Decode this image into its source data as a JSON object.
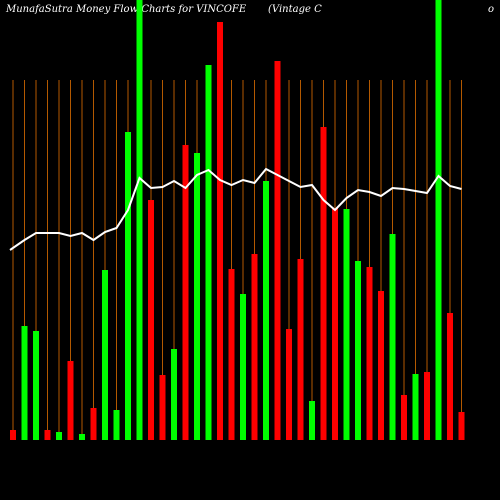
{
  "chart_data": {
    "type": "bar-line",
    "title": "MunafaSutra  Money Flow  Charts for VINCOFE",
    "subtitle": "(Vintage   C",
    "corner_text": "o",
    "categories": [
      null,
      null,
      null,
      null,
      null,
      null,
      null,
      null,
      null,
      null,
      null,
      null,
      null,
      null,
      null,
      null,
      null,
      null,
      null,
      null,
      null,
      null,
      null,
      null,
      null,
      null,
      null,
      null,
      null,
      null,
      null,
      null,
      null,
      null,
      null,
      null,
      null,
      null,
      null,
      null
    ],
    "ylim": [
      0,
      440
    ],
    "series": [
      {
        "type": "bar",
        "values": [
          10,
          114,
          109,
          10,
          8,
          79,
          6,
          32,
          170,
          30,
          308,
          440,
          240,
          65,
          91,
          295,
          287,
          375,
          418,
          171,
          146,
          186,
          259,
          379,
          111,
          181,
          39,
          313,
          232,
          231,
          179,
          173,
          149,
          206,
          45,
          66,
          68,
          440,
          127,
          28
        ],
        "colors": [
          "#ff0000",
          "#00ff00",
          "#00ff00",
          "#ff0000",
          "#00ff00",
          "#ff0000",
          "#00ff00",
          "#ff0000",
          "#00ff00",
          "#00ff00",
          "#00ff00",
          "#00ff00",
          "#ff0000",
          "#ff0000",
          "#00ff00",
          "#ff0000",
          "#00ff00",
          "#00ff00",
          "#ff0000",
          "#ff0000",
          "#00ff00",
          "#ff0000",
          "#00ff00",
          "#ff0000",
          "#ff0000",
          "#ff0000",
          "#00ff00",
          "#ff0000",
          "#ff0000",
          "#00ff00",
          "#00ff00",
          "#ff0000",
          "#ff0000",
          "#00ff00",
          "#ff0000",
          "#00ff00",
          "#ff0000",
          "#00ff00",
          "#ff0000",
          "#ff0000"
        ]
      },
      {
        "type": "line",
        "color": "#ffffff",
        "values": [
          190,
          200,
          207,
          207,
          207,
          204,
          207,
          200,
          208,
          212,
          230,
          262,
          252,
          253,
          259,
          252,
          265,
          270,
          260,
          255,
          260,
          257,
          271,
          265,
          259,
          253,
          255,
          240,
          230,
          242,
          250,
          248,
          244,
          252,
          251,
          249,
          247,
          264,
          254,
          251
        ]
      }
    ],
    "gridline_color": "#b35900"
  }
}
